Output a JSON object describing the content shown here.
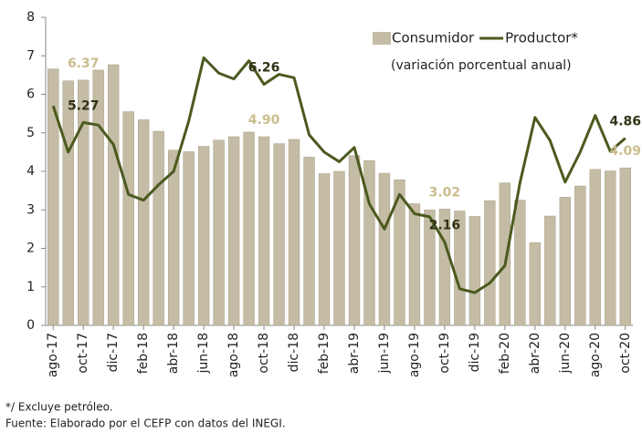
{
  "chart_data": {
    "type": "bar-line",
    "subtitle": "(variación porcentual anual)",
    "categories": [
      "ago-17",
      null,
      "oct-17",
      null,
      "dic-17",
      null,
      "feb-18",
      null,
      "abr-18",
      null,
      "jun-18",
      null,
      "ago-18",
      null,
      "oct-18",
      null,
      "dic-18",
      null,
      "feb-19",
      null,
      "abr-19",
      null,
      "jun-19",
      null,
      "ago-19",
      null,
      "oct-19",
      null,
      "dic-19",
      null,
      "feb-20",
      null,
      "abr-20",
      null,
      "jun-20",
      null,
      "ago-20",
      null,
      "oct-20"
    ],
    "series": [
      {
        "name": "Consumidor",
        "type": "bar",
        "color": "#c4bca4",
        "values": [
          6.66,
          6.35,
          6.37,
          6.63,
          6.77,
          5.55,
          5.34,
          5.04,
          4.55,
          4.51,
          4.65,
          4.81,
          4.9,
          5.02,
          4.9,
          4.72,
          4.83,
          4.37,
          3.94,
          4.0,
          4.41,
          4.28,
          3.95,
          3.78,
          3.16,
          3.0,
          3.02,
          2.97,
          2.83,
          3.24,
          3.7,
          3.25,
          2.15,
          2.84,
          3.33,
          3.62,
          4.05,
          4.01,
          4.09
        ],
        "value_labels": [
          null,
          null,
          "6.37",
          null,
          null,
          null,
          null,
          null,
          null,
          null,
          null,
          null,
          null,
          null,
          "4.90",
          null,
          null,
          null,
          null,
          null,
          null,
          null,
          null,
          null,
          null,
          null,
          "3.02",
          null,
          null,
          null,
          null,
          null,
          null,
          null,
          null,
          null,
          null,
          null,
          "4.09"
        ]
      },
      {
        "name": "Productor*",
        "type": "line",
        "color": "#4b5a1f",
        "values": [
          5.7,
          4.5,
          5.27,
          5.2,
          4.7,
          3.4,
          3.25,
          3.65,
          4.0,
          5.3,
          6.95,
          6.55,
          6.4,
          6.87,
          6.26,
          6.52,
          6.43,
          4.95,
          4.5,
          4.25,
          4.62,
          3.15,
          2.5,
          3.4,
          2.9,
          2.82,
          2.16,
          0.95,
          0.85,
          1.1,
          1.55,
          3.7,
          5.4,
          4.8,
          3.72,
          4.5,
          5.45,
          4.52,
          4.86
        ],
        "value_labels": [
          null,
          null,
          "5.27",
          null,
          null,
          null,
          null,
          null,
          null,
          null,
          null,
          null,
          null,
          null,
          "6.26",
          null,
          null,
          null,
          null,
          null,
          null,
          null,
          null,
          null,
          null,
          null,
          "2.16",
          null,
          null,
          null,
          null,
          null,
          null,
          null,
          null,
          null,
          null,
          null,
          "4.86"
        ]
      }
    ],
    "ylim": [
      0,
      8
    ],
    "yticks": [
      0,
      1,
      2,
      3,
      4,
      5,
      6,
      7,
      8
    ],
    "grid": false
  },
  "footnotes": [
    "*/ Excluye petróleo.",
    "Fuente: Elaborado por el CEFP con datos del INEGI."
  ]
}
